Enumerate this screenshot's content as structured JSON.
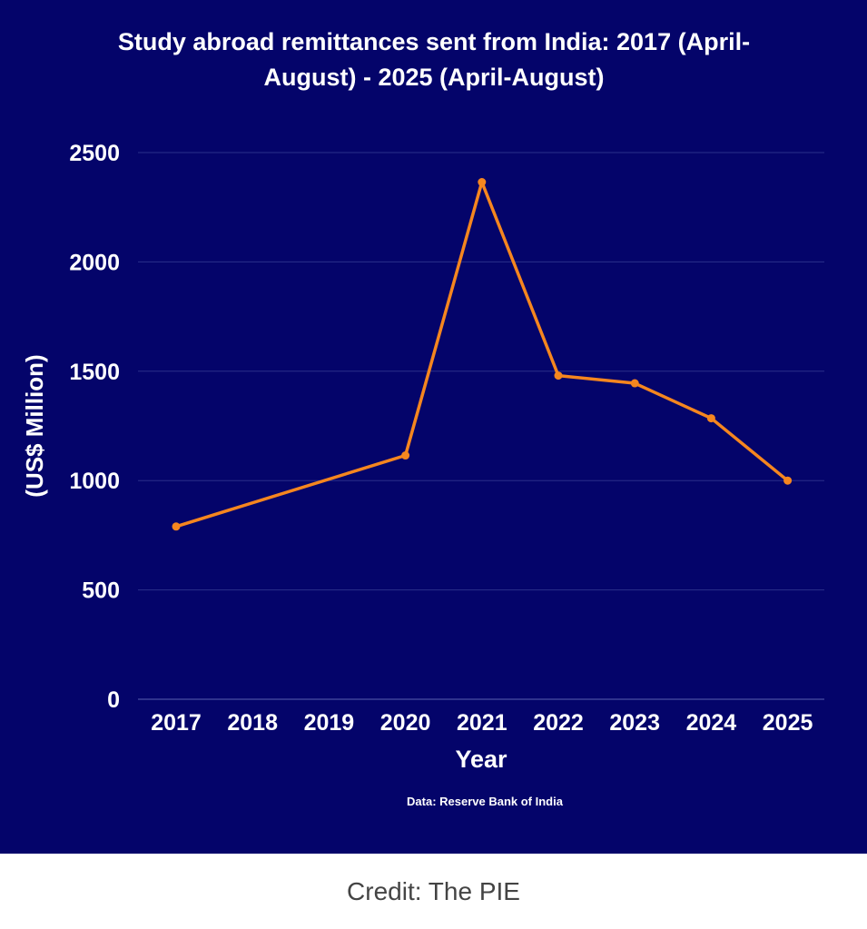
{
  "chart_data": {
    "type": "line",
    "title_line1": "Study abroad remittances sent from India: 2017 (April-",
    "title_line2": "August) - 2025 (April-August)",
    "xlabel": "Year",
    "ylabel": "(US$ Million)",
    "categories": [
      "2017",
      "2018",
      "2019",
      "2020",
      "2021",
      "2022",
      "2023",
      "2024",
      "2025"
    ],
    "series": [
      {
        "points": [
          {
            "x": "2017",
            "y": 790
          },
          {
            "x": "2020",
            "y": 1115
          },
          {
            "x": "2021",
            "y": 2365
          },
          {
            "x": "2022",
            "y": 1480
          },
          {
            "x": "2023",
            "y": 1445
          },
          {
            "x": "2024",
            "y": 1285
          },
          {
            "x": "2025",
            "y": 1000
          }
        ]
      }
    ],
    "ylim": [
      0,
      2500
    ],
    "yticks": [
      0,
      500,
      1000,
      1500,
      2000,
      2500
    ],
    "grid": true,
    "legend": "none",
    "source_note": "Data: Reserve Bank of India",
    "colors": {
      "background": "#04046a",
      "line": "#f5861f",
      "grid": "#2a2f8a",
      "text": "#ffffff"
    }
  },
  "credit": "Credit: The PIE"
}
